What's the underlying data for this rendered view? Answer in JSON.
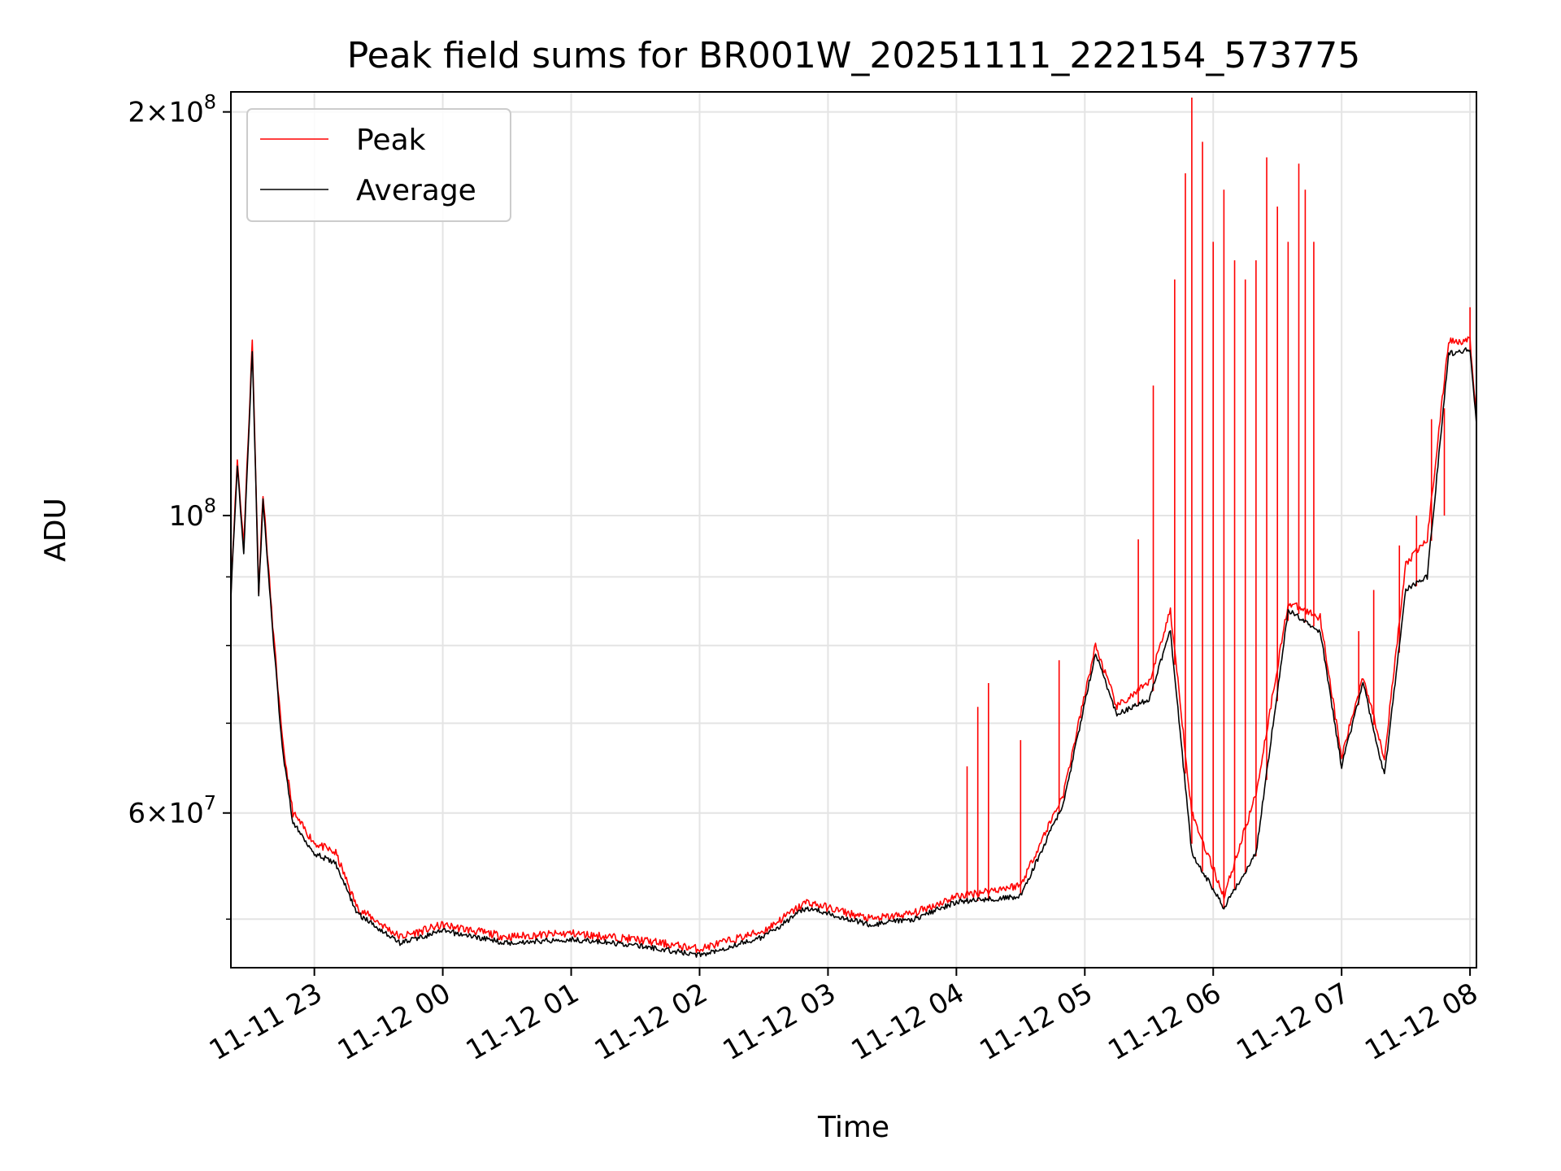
{
  "chart_data": {
    "type": "line",
    "title": "Peak field sums for BR001W_20251111_222154_573775",
    "xlabel": "Time",
    "ylabel": "ADU",
    "y_scale": "log",
    "ylim": [
      46000000,
      207000000
    ],
    "xlim": [
      "2025-11-11 22:21",
      "2025-11-12 08:03"
    ],
    "grid": true,
    "legend_position": "upper-left",
    "x_ticks": [
      {
        "t": "2025-11-11 23:00",
        "label": "11-11 23"
      },
      {
        "t": "2025-11-12 00:00",
        "label": "11-12 00"
      },
      {
        "t": "2025-11-12 01:00",
        "label": "11-12 01"
      },
      {
        "t": "2025-11-12 02:00",
        "label": "11-12 02"
      },
      {
        "t": "2025-11-12 03:00",
        "label": "11-12 03"
      },
      {
        "t": "2025-11-12 04:00",
        "label": "11-12 04"
      },
      {
        "t": "2025-11-12 05:00",
        "label": "11-12 05"
      },
      {
        "t": "2025-11-12 06:00",
        "label": "11-12 06"
      },
      {
        "t": "2025-11-12 07:00",
        "label": "11-12 07"
      },
      {
        "t": "2025-11-12 08:00",
        "label": "11-12 08"
      }
    ],
    "y_ticks": [
      {
        "value": 60000000,
        "base": "6×10",
        "exp": "7"
      },
      {
        "value": 100000000,
        "base": "10",
        "exp": "8"
      },
      {
        "value": 200000000,
        "base": "2×10",
        "exp": "8"
      }
    ],
    "y_minor_ticks": [
      50000000,
      70000000,
      80000000,
      90000000
    ],
    "series": [
      {
        "name": "Peak",
        "color": "#ff0000",
        "points": [
          [
            "2025-11-11 22:21",
            88000000
          ],
          [
            "2025-11-11 22:24",
            110000000
          ],
          [
            "2025-11-11 22:27",
            95000000
          ],
          [
            "2025-11-11 22:31",
            135000000
          ],
          [
            "2025-11-11 22:34",
            88000000
          ],
          [
            "2025-11-11 22:36",
            104000000
          ],
          [
            "2025-11-11 22:40",
            85000000
          ],
          [
            "2025-11-11 22:45",
            68000000
          ],
          [
            "2025-11-11 22:50",
            60000000
          ],
          [
            "2025-11-11 23:00",
            57000000
          ],
          [
            "2025-11-11 23:10",
            56000000
          ],
          [
            "2025-11-11 23:20",
            51000000
          ],
          [
            "2025-11-11 23:40",
            48500000
          ],
          [
            "2025-11-12 00:00",
            49500000
          ],
          [
            "2025-11-12 00:30",
            48500000
          ],
          [
            "2025-11-12 01:00",
            48800000
          ],
          [
            "2025-11-12 01:30",
            48300000
          ],
          [
            "2025-11-12 02:00",
            47500000
          ],
          [
            "2025-11-12 02:30",
            49000000
          ],
          [
            "2025-11-12 02:50",
            51500000
          ],
          [
            "2025-11-12 03:20",
            50000000
          ],
          [
            "2025-11-12 03:40",
            50500000
          ],
          [
            "2025-11-12 04:00",
            52000000
          ],
          [
            "2025-11-12 04:30",
            53000000
          ],
          [
            "2025-11-12 04:50",
            62000000
          ],
          [
            "2025-11-12 05:05",
            80000000
          ],
          [
            "2025-11-12 05:15",
            72000000
          ],
          [
            "2025-11-12 05:30",
            75000000
          ],
          [
            "2025-11-12 05:40",
            85000000
          ],
          [
            "2025-11-12 05:50",
            60000000
          ],
          [
            "2025-11-12 06:05",
            52000000
          ],
          [
            "2025-11-12 06:20",
            62000000
          ],
          [
            "2025-11-12 06:35",
            86000000
          ],
          [
            "2025-11-12 06:50",
            84000000
          ],
          [
            "2025-11-12 07:00",
            66000000
          ],
          [
            "2025-11-12 07:10",
            76000000
          ],
          [
            "2025-11-12 07:20",
            66000000
          ],
          [
            "2025-11-12 07:30",
            92000000
          ],
          [
            "2025-11-12 07:40",
            96000000
          ],
          [
            "2025-11-12 07:50",
            135000000
          ],
          [
            "2025-11-12 08:00",
            135000000
          ],
          [
            "2025-11-12 08:03",
            118000000
          ]
        ]
      },
      {
        "name": "Average",
        "color": "#000000",
        "points": [
          [
            "2025-11-11 22:21",
            87000000
          ],
          [
            "2025-11-11 22:24",
            109000000
          ],
          [
            "2025-11-11 22:27",
            94000000
          ],
          [
            "2025-11-11 22:31",
            133000000
          ],
          [
            "2025-11-11 22:34",
            87000000
          ],
          [
            "2025-11-11 22:36",
            103000000
          ],
          [
            "2025-11-11 22:40",
            84000000
          ],
          [
            "2025-11-11 22:45",
            67000000
          ],
          [
            "2025-11-11 22:50",
            59000000
          ],
          [
            "2025-11-11 23:00",
            56000000
          ],
          [
            "2025-11-11 23:10",
            55000000
          ],
          [
            "2025-11-11 23:20",
            50500000
          ],
          [
            "2025-11-11 23:40",
            48000000
          ],
          [
            "2025-11-12 00:00",
            49000000
          ],
          [
            "2025-11-12 00:30",
            48000000
          ],
          [
            "2025-11-12 01:00",
            48300000
          ],
          [
            "2025-11-12 01:30",
            47800000
          ],
          [
            "2025-11-12 02:00",
            47000000
          ],
          [
            "2025-11-12 02:30",
            48500000
          ],
          [
            "2025-11-12 02:50",
            51000000
          ],
          [
            "2025-11-12 03:20",
            49500000
          ],
          [
            "2025-11-12 03:40",
            50000000
          ],
          [
            "2025-11-12 04:00",
            51500000
          ],
          [
            "2025-11-12 04:30",
            52000000
          ],
          [
            "2025-11-12 04:50",
            61000000
          ],
          [
            "2025-11-12 05:05",
            79000000
          ],
          [
            "2025-11-12 05:15",
            71000000
          ],
          [
            "2025-11-12 05:30",
            73000000
          ],
          [
            "2025-11-12 05:40",
            82000000
          ],
          [
            "2025-11-12 05:50",
            56000000
          ],
          [
            "2025-11-12 06:05",
            51000000
          ],
          [
            "2025-11-12 06:20",
            56000000
          ],
          [
            "2025-11-12 06:35",
            85000000
          ],
          [
            "2025-11-12 06:50",
            82000000
          ],
          [
            "2025-11-12 07:00",
            65000000
          ],
          [
            "2025-11-12 07:10",
            75000000
          ],
          [
            "2025-11-12 07:20",
            64000000
          ],
          [
            "2025-11-12 07:30",
            88000000
          ],
          [
            "2025-11-12 07:40",
            90000000
          ],
          [
            "2025-11-12 07:50",
            132000000
          ],
          [
            "2025-11-12 08:00",
            133000000
          ],
          [
            "2025-11-12 08:03",
            117000000
          ]
        ]
      }
    ],
    "peak_spikes": [
      [
        "2025-11-12 04:05",
        65000000
      ],
      [
        "2025-11-12 04:10",
        72000000
      ],
      [
        "2025-11-12 04:15",
        75000000
      ],
      [
        "2025-11-12 04:30",
        68000000
      ],
      [
        "2025-11-12 04:48",
        78000000
      ],
      [
        "2025-11-12 05:25",
        96000000
      ],
      [
        "2025-11-12 05:32",
        125000000
      ],
      [
        "2025-11-12 05:42",
        150000000
      ],
      [
        "2025-11-12 05:47",
        180000000
      ],
      [
        "2025-11-12 05:50",
        205000000
      ],
      [
        "2025-11-12 05:55",
        190000000
      ],
      [
        "2025-11-12 06:00",
        160000000
      ],
      [
        "2025-11-12 06:05",
        175000000
      ],
      [
        "2025-11-12 06:10",
        155000000
      ],
      [
        "2025-11-12 06:15",
        150000000
      ],
      [
        "2025-11-12 06:20",
        155000000
      ],
      [
        "2025-11-12 06:25",
        185000000
      ],
      [
        "2025-11-12 06:30",
        170000000
      ],
      [
        "2025-11-12 06:35",
        160000000
      ],
      [
        "2025-11-12 06:40",
        183000000
      ],
      [
        "2025-11-12 06:43",
        175000000
      ],
      [
        "2025-11-12 06:47",
        160000000
      ],
      [
        "2025-11-12 07:08",
        82000000
      ],
      [
        "2025-11-12 07:15",
        88000000
      ],
      [
        "2025-11-12 07:27",
        95000000
      ],
      [
        "2025-11-12 07:35",
        100000000
      ],
      [
        "2025-11-12 07:42",
        118000000
      ],
      [
        "2025-11-12 07:48",
        100000000
      ],
      [
        "2025-11-12 08:00",
        143000000
      ]
    ]
  }
}
